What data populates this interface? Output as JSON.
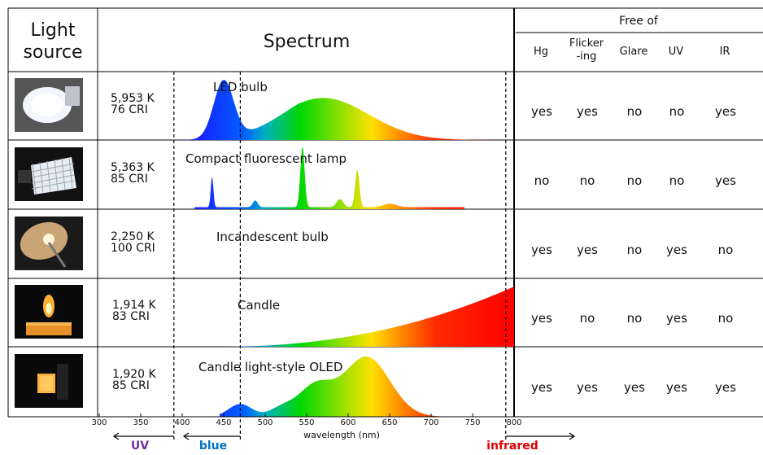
{
  "header": {
    "light_source": [
      "Light",
      "source"
    ],
    "spectrum": "Spectrum",
    "free_of": "Free of",
    "columns": [
      "Hg",
      "Flicker\n-ing",
      "Glare",
      "UV",
      "IR"
    ]
  },
  "rows": [
    {
      "name": "LED bulb",
      "temp": "5,953 K",
      "cri": "76 CRI",
      "icon": "led-bulb-photo",
      "free_of": [
        "yes",
        "yes",
        "no",
        "no",
        "yes"
      ]
    },
    {
      "name": "Compact fluorescent lamp",
      "temp": "5,363 K",
      "cri": "85 CRI",
      "icon": "fluorescent-lamp-photo",
      "free_of": [
        "no",
        "no",
        "no",
        "no",
        "yes"
      ]
    },
    {
      "name": "Incandescent bulb",
      "temp": "2,250 K",
      "cri": "100 CRI",
      "icon": "incandescent-bulb-photo",
      "free_of": [
        "yes",
        "yes",
        "no",
        "yes",
        "no"
      ]
    },
    {
      "name": "Candle",
      "temp": "1,914 K",
      "cri": "83 CRI",
      "icon": "candle-photo",
      "free_of": [
        "yes",
        "no",
        "no",
        "yes",
        "no"
      ]
    },
    {
      "name": "Candle light-style OLED",
      "temp": "1,920 K",
      "cri": "85 CRI",
      "icon": "oled-panel-photo",
      "free_of": [
        "yes",
        "yes",
        "yes",
        "yes",
        "yes"
      ]
    }
  ],
  "axis": {
    "label": "wavelength (nm)",
    "range": [
      300,
      800
    ],
    "ticks": [
      300,
      350,
      400,
      450,
      500,
      550,
      600,
      650,
      700,
      750,
      800
    ]
  },
  "regions": [
    {
      "label": "UV",
      "color": "#7030a0",
      "boundary_nm": 390
    },
    {
      "label": "blue",
      "color": "#0070c0",
      "boundary_nm": 470
    },
    {
      "label": "infrared",
      "color": "#e00000",
      "boundary_nm": 790
    }
  ]
}
